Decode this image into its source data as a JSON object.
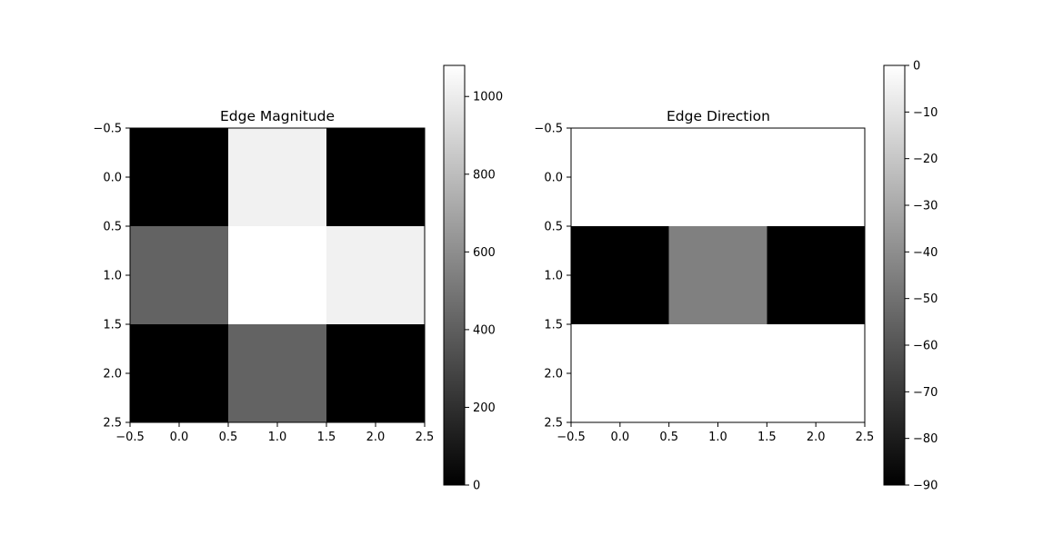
{
  "chart_data": [
    {
      "type": "heatmap",
      "title": "Edge Magnitude",
      "colormap": "gray",
      "x_ticks": [
        "−0.5",
        "0.0",
        "0.5",
        "1.0",
        "1.5",
        "2.0",
        "2.5"
      ],
      "y_ticks": [
        "−0.5",
        "0.0",
        "0.5",
        "1.0",
        "1.5",
        "2.0",
        "2.5"
      ],
      "xlim": [
        -0.5,
        2.5
      ],
      "ylim": [
        2.5,
        -0.5
      ],
      "values": [
        [
          0,
          1020,
          0
        ],
        [
          420,
          1080,
          1020
        ],
        [
          0,
          420,
          0
        ]
      ],
      "colorbar": {
        "range": [
          0,
          1080
        ],
        "ticks": [
          0,
          200,
          400,
          600,
          800,
          1000
        ],
        "tick_labels": [
          "0",
          "200",
          "400",
          "600",
          "800",
          "1000"
        ]
      }
    },
    {
      "type": "heatmap",
      "title": "Edge Direction",
      "colormap": "gray",
      "x_ticks": [
        "−0.5",
        "0.0",
        "0.5",
        "1.0",
        "1.5",
        "2.0",
        "2.5"
      ],
      "y_ticks": [
        "−0.5",
        "0.0",
        "0.5",
        "1.0",
        "1.5",
        "2.0",
        "2.5"
      ],
      "xlim": [
        -0.5,
        2.5
      ],
      "ylim": [
        2.5,
        -0.5
      ],
      "values": [
        [
          0,
          0,
          0
        ],
        [
          -90,
          -45,
          -90
        ],
        [
          0,
          0,
          0
        ]
      ],
      "colorbar": {
        "range": [
          -90,
          0
        ],
        "ticks": [
          0,
          -10,
          -20,
          -30,
          -40,
          -50,
          -60,
          -70,
          -80,
          -90
        ],
        "tick_labels": [
          "0",
          "−10",
          "−20",
          "−30",
          "−40",
          "−50",
          "−60",
          "−70",
          "−80",
          "−90"
        ]
      }
    }
  ]
}
